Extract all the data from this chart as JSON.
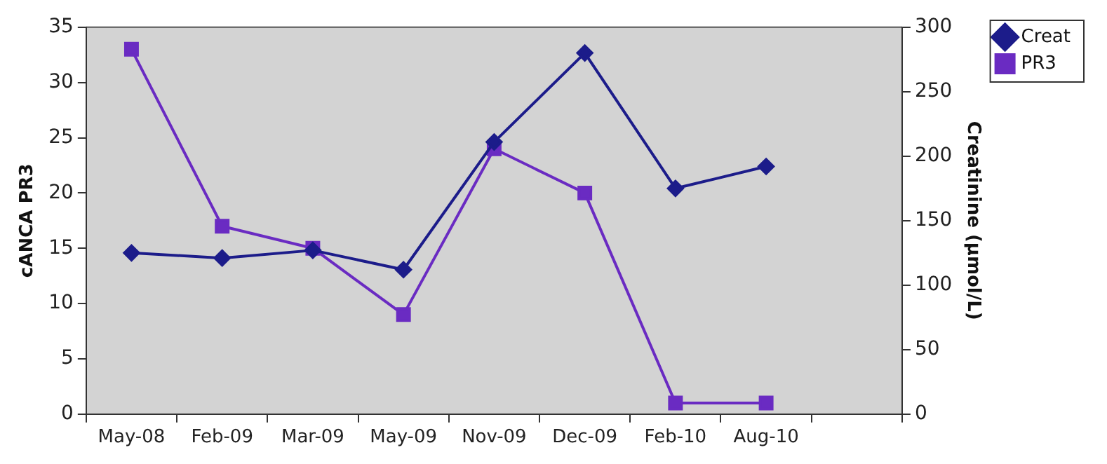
{
  "chart_data": {
    "type": "line",
    "categories": [
      "May-08",
      "Feb-09",
      "Mar-09",
      "May-09",
      "Nov-09",
      "Dec-09",
      "Feb-10",
      "Aug-10",
      null
    ],
    "ylabel": "cANCA PR3",
    "y2label": "Creatinine (µmol/L)",
    "series": [
      {
        "name": "PR3",
        "color": "#6a2bc2",
        "marker": "square",
        "values": [
          33,
          17,
          15,
          9,
          24,
          20,
          1,
          1,
          null
        ]
      },
      {
        "name": "Creat",
        "color": "#1c1c8a",
        "marker": "diamond",
        "axis": "y2",
        "values": [
          125,
          121,
          127,
          112,
          211,
          280,
          175,
          192,
          null
        ]
      }
    ],
    "ylim": [
      0,
      35
    ],
    "yticks": [
      0,
      5,
      10,
      15,
      20,
      25,
      30,
      35
    ],
    "y2lim": [
      0,
      300
    ],
    "y2ticks": [
      0,
      50,
      100,
      150,
      200,
      250,
      300
    ],
    "grid": false,
    "legend": "top right"
  }
}
